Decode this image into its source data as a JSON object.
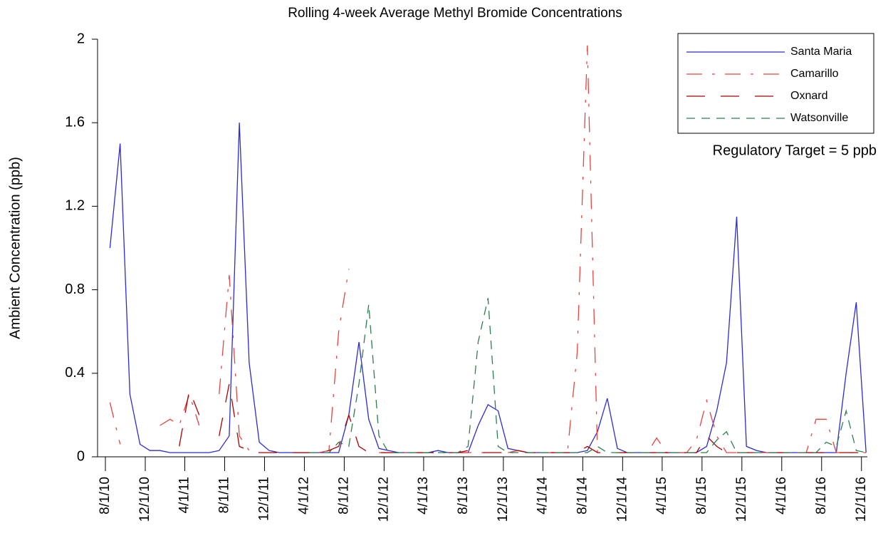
{
  "chart_data": {
    "type": "line",
    "title": "Rolling 4-week Average Methyl Bromide Concentrations",
    "y_label": "Ambient Concentration (ppb)",
    "annotation": "Regulatory Target = 5 ppb",
    "legend": "top-right",
    "x": [
      "2010-08-15",
      "2010-09-15",
      "2010-10-15",
      "2010-11-15",
      "2010-12-15",
      "2011-01-15",
      "2011-02-15",
      "2011-03-15",
      "2011-04-15",
      "2011-05-15",
      "2011-06-15",
      "2011-07-15",
      "2011-08-15",
      "2011-09-15",
      "2011-10-15",
      "2011-11-15",
      "2011-12-15",
      "2012-01-15",
      "2012-02-15",
      "2012-03-15",
      "2012-04-15",
      "2012-05-15",
      "2012-06-15",
      "2012-07-15",
      "2012-08-15",
      "2012-09-15",
      "2012-10-15",
      "2012-11-15",
      "2012-12-15",
      "2013-01-15",
      "2013-02-15",
      "2013-03-15",
      "2013-04-15",
      "2013-05-15",
      "2013-06-15",
      "2013-07-15",
      "2013-08-15",
      "2013-09-15",
      "2013-10-15",
      "2013-11-15",
      "2013-12-15",
      "2014-01-15",
      "2014-02-15",
      "2014-03-15",
      "2014-04-15",
      "2014-05-15",
      "2014-06-15",
      "2014-07-15",
      "2014-08-15",
      "2014-09-15",
      "2014-10-15",
      "2014-11-15",
      "2014-12-15",
      "2015-01-15",
      "2015-02-15",
      "2015-03-15",
      "2015-04-15",
      "2015-05-15",
      "2015-06-15",
      "2015-07-15",
      "2015-08-15",
      "2015-09-15",
      "2015-10-15",
      "2015-11-15",
      "2015-12-15",
      "2016-01-15",
      "2016-02-15",
      "2016-03-15",
      "2016-04-15",
      "2016-05-15",
      "2016-06-15",
      "2016-07-15",
      "2016-08-15",
      "2016-09-15",
      "2016-10-15",
      "2016-11-15",
      "2016-12-15"
    ],
    "series": [
      {
        "name": "Santa Maria",
        "color": "#2b2bd6",
        "values": [
          1.0,
          1.5,
          0.3,
          0.06,
          0.03,
          0.03,
          0.02,
          0.02,
          0.02,
          0.02,
          0.02,
          0.03,
          0.1,
          1.6,
          0.45,
          0.07,
          0.03,
          0.02,
          0.02,
          0.02,
          0.02,
          0.02,
          0.02,
          0.02,
          0.2,
          0.55,
          0.18,
          0.04,
          0.03,
          0.02,
          0.02,
          0.02,
          0.02,
          0.03,
          0.02,
          0.02,
          0.02,
          0.15,
          0.25,
          0.22,
          0.04,
          0.03,
          0.02,
          0.02,
          0.02,
          0.02,
          0.02,
          0.02,
          0.03,
          0.12,
          0.28,
          0.04,
          0.02,
          0.02,
          0.02,
          0.02,
          0.02,
          0.02,
          0.02,
          0.02,
          0.05,
          0.22,
          0.45,
          1.15,
          0.05,
          0.03,
          0.02,
          0.02,
          0.02,
          0.02,
          0.02,
          0.02,
          0.02,
          0.02,
          0.4,
          0.74,
          0.02
        ]
      },
      {
        "name": "Camarillo",
        "color": "#e8433e",
        "values": [
          0.26,
          0.06,
          null,
          0.02,
          null,
          0.15,
          0.18,
          0.15,
          0.3,
          0.15,
          null,
          0.3,
          0.87,
          0.1,
          0.03,
          0.02,
          null,
          null,
          null,
          null,
          null,
          0.02,
          0.03,
          0.6,
          0.9,
          null,
          null,
          0.02,
          0.02,
          0.02,
          0.02,
          0.02,
          0.02,
          0.02,
          0.02,
          0.02,
          0.02,
          0.02,
          0.02,
          null,
          0.02,
          0.03,
          0.02,
          0.02,
          0.02,
          0.02,
          0.02,
          0.5,
          1.97,
          0.02,
          null,
          0.02,
          0.02,
          0.02,
          0.02,
          0.09,
          0.02,
          0.02,
          0.02,
          0.08,
          0.27,
          0.1,
          0.02,
          0.02,
          0.02,
          0.02,
          0.02,
          0.02,
          0.02,
          0.02,
          0.02,
          0.18,
          0.18,
          0.02,
          0.02,
          0.02,
          0.02
        ]
      },
      {
        "name": "Oxnard",
        "color": "#b00000",
        "values": [
          null,
          null,
          null,
          null,
          null,
          null,
          null,
          0.05,
          0.32,
          0.2,
          null,
          0.1,
          0.35,
          0.05,
          0.03,
          0.02,
          0.02,
          0.02,
          0.02,
          0.02,
          0.02,
          0.02,
          0.03,
          0.05,
          0.2,
          0.05,
          0.02,
          0.02,
          0.02,
          0.02,
          0.02,
          0.02,
          0.02,
          0.02,
          0.02,
          0.02,
          0.03,
          0.02,
          0.02,
          0.02,
          0.02,
          0.03,
          0.02,
          0.02,
          0.02,
          0.02,
          0.02,
          0.02,
          0.05,
          0.02,
          0.02,
          0.02,
          0.02,
          0.02,
          0.02,
          0.02,
          0.02,
          0.02,
          0.02,
          0.02,
          0.1,
          0.05,
          0.02,
          0.02,
          0.02,
          0.02,
          0.02,
          0.02,
          0.02,
          0.02,
          0.02,
          0.02,
          0.02,
          0.02,
          0.02,
          0.02,
          0.02
        ]
      },
      {
        "name": "Watsonville",
        "color": "#2e7d4f",
        "values": [
          null,
          null,
          null,
          null,
          null,
          null,
          null,
          null,
          null,
          null,
          null,
          null,
          null,
          null,
          null,
          null,
          null,
          null,
          null,
          null,
          0.02,
          0.02,
          0.02,
          0.07,
          0.05,
          0.35,
          0.73,
          0.1,
          0.02,
          0.02,
          0.02,
          0.02,
          0.02,
          0.02,
          0.02,
          0.02,
          0.05,
          0.55,
          0.76,
          0.05,
          0.02,
          0.02,
          0.02,
          0.02,
          0.02,
          0.02,
          0.02,
          0.02,
          0.02,
          0.05,
          0.02,
          0.02,
          0.02,
          0.02,
          0.02,
          0.02,
          0.02,
          0.02,
          0.02,
          0.02,
          0.02,
          0.08,
          0.12,
          0.02,
          0.02,
          0.02,
          0.02,
          0.02,
          0.02,
          0.02,
          0.02,
          0.02,
          0.07,
          0.05,
          0.22,
          0.03,
          0.02
        ]
      }
    ],
    "xlim": [
      "2010-07-08",
      "2016-12-19"
    ],
    "xticks": [
      {
        "value": "2010-08-01",
        "label": "8/1/10"
      },
      {
        "value": "2010-12-01",
        "label": "12/1/10"
      },
      {
        "value": "2011-04-01",
        "label": "4/1/11"
      },
      {
        "value": "2011-08-01",
        "label": "8/1/11"
      },
      {
        "value": "2011-12-01",
        "label": "12/1/11"
      },
      {
        "value": "2012-04-01",
        "label": "4/1/12"
      },
      {
        "value": "2012-08-01",
        "label": "8/1/12"
      },
      {
        "value": "2012-12-01",
        "label": "12/1/12"
      },
      {
        "value": "2013-04-01",
        "label": "4/1/13"
      },
      {
        "value": "2013-08-01",
        "label": "8/1/13"
      },
      {
        "value": "2013-12-01",
        "label": "12/1/13"
      },
      {
        "value": "2014-04-01",
        "label": "4/1/14"
      },
      {
        "value": "2014-08-01",
        "label": "8/1/14"
      },
      {
        "value": "2014-12-01",
        "label": "12/1/14"
      },
      {
        "value": "2015-04-01",
        "label": "4/1/15"
      },
      {
        "value": "2015-08-01",
        "label": "8/1/15"
      },
      {
        "value": "2015-12-01",
        "label": "12/1/15"
      },
      {
        "value": "2016-04-01",
        "label": "4/1/16"
      },
      {
        "value": "2016-08-01",
        "label": "8/1/16"
      },
      {
        "value": "2016-12-01",
        "label": "12/1/16"
      }
    ],
    "ylim": [
      0,
      2
    ],
    "yticks": [
      0,
      {
        "value": 0.4,
        "label": "0.4"
      },
      {
        "value": 0.8,
        "label": "0.8"
      },
      {
        "value": 1.2,
        "label": "1.2"
      },
      {
        "value": 1.6,
        "label": "1.6"
      },
      2
    ],
    "grid": false
  }
}
